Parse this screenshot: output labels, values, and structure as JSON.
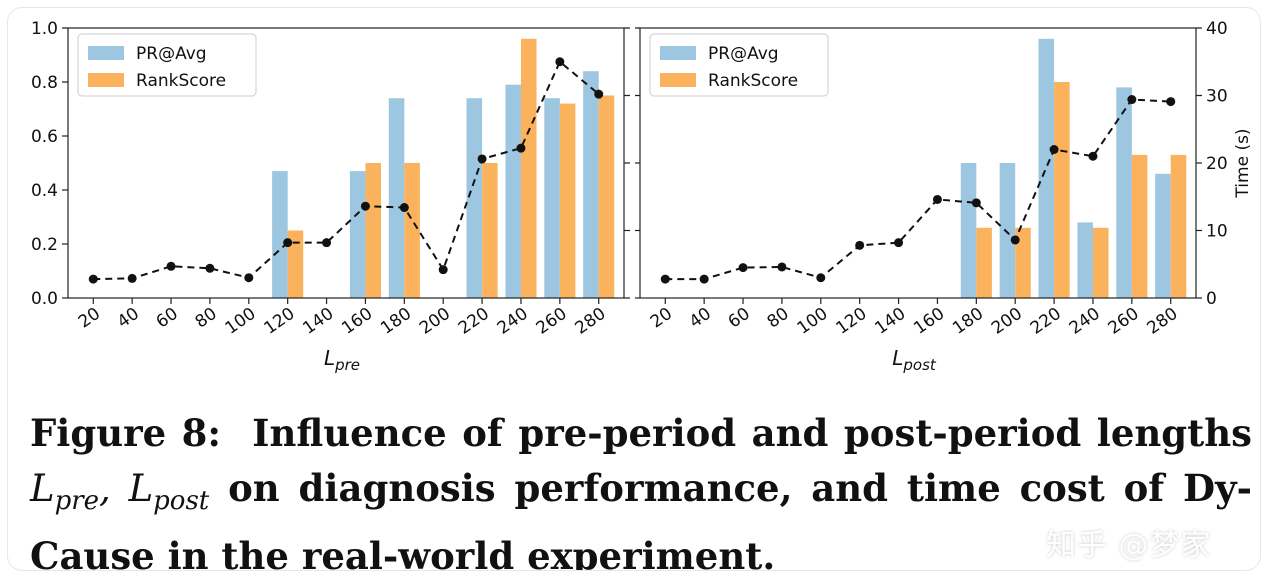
{
  "colors": {
    "pr_avg": "#9dc6e0",
    "rank_score": "#fbb25c",
    "time_line": "#111111"
  },
  "chart_data": [
    {
      "type": "bar",
      "xlabel_main": "L",
      "xlabel_sub": "pre",
      "ylabel_left": "",
      "ylabel_right": "",
      "categories": [
        "20",
        "40",
        "60",
        "80",
        "100",
        "120",
        "140",
        "160",
        "180",
        "200",
        "220",
        "240",
        "260",
        "280"
      ],
      "ylim": [
        0,
        1.0
      ],
      "yticks": [
        "0.0",
        "0.2",
        "0.4",
        "0.6",
        "0.8",
        "1.0"
      ],
      "y2lim": [
        0,
        40
      ],
      "legend": "top-left",
      "series": [
        {
          "name": "PR@Avg",
          "axis": "left",
          "values": [
            0,
            0,
            0,
            0,
            0,
            0.47,
            0,
            0.47,
            0.74,
            0,
            0.74,
            0.79,
            0.74,
            0.84
          ]
        },
        {
          "name": "RankScore",
          "axis": "left",
          "values": [
            0,
            0,
            0,
            0,
            0,
            0.25,
            0,
            0.5,
            0.5,
            0,
            0.5,
            0.96,
            0.72,
            0.75
          ]
        },
        {
          "axis": "right",
          "type": "line",
          "values": [
            2.8,
            2.9,
            4.7,
            4.4,
            3.0,
            8.2,
            8.2,
            13.6,
            13.4,
            4.2,
            20.6,
            22.2,
            35.0,
            30.2
          ]
        }
      ]
    },
    {
      "type": "bar",
      "xlabel_main": "L",
      "xlabel_sub": "post",
      "ylabel_left": "",
      "ylabel_right": "Time (s)",
      "categories": [
        "20",
        "40",
        "60",
        "80",
        "100",
        "120",
        "140",
        "160",
        "180",
        "200",
        "220",
        "240",
        "260",
        "280"
      ],
      "ylim": [
        0,
        1.0
      ],
      "yticks": [],
      "y2lim": [
        0,
        40
      ],
      "y2ticks": [
        "0",
        "10",
        "20",
        "30",
        "40"
      ],
      "legend": "top-left",
      "series": [
        {
          "name": "PR@Avg",
          "axis": "left",
          "values": [
            0,
            0,
            0,
            0,
            0,
            0,
            0,
            0,
            0.5,
            0.5,
            0.96,
            0.28,
            0.78,
            0.46
          ]
        },
        {
          "name": "RankScore",
          "axis": "left",
          "values": [
            0,
            0,
            0,
            0,
            0,
            0,
            0,
            0,
            0.26,
            0.26,
            0.8,
            0.26,
            0.53,
            0.53
          ]
        },
        {
          "axis": "right",
          "type": "line",
          "values": [
            2.8,
            2.8,
            4.5,
            4.6,
            3.0,
            7.8,
            8.2,
            14.6,
            14.1,
            8.6,
            22.0,
            21.0,
            29.4,
            29.1
          ]
        }
      ]
    }
  ],
  "caption": {
    "label": "Figure 8:",
    "text_1": "Influence of pre-period and post-period lengths",
    "math_1_main": "L",
    "math_1_sub": "pre",
    "math_sep": ", ",
    "math_2_main": "L",
    "math_2_sub": "post",
    "text_2": "on diagnosis performance, and time cost of Dy-Cause in the real-world experiment."
  },
  "watermark": "知乎 @梦家"
}
